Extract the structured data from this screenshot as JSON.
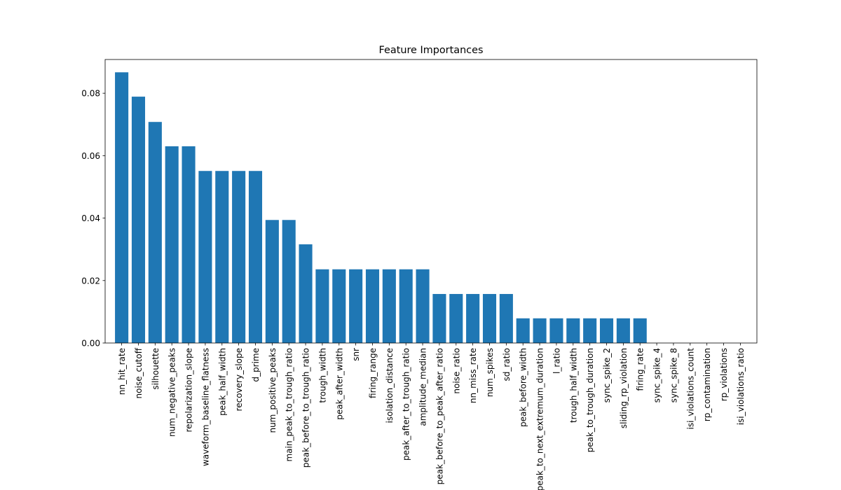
{
  "chart_data": {
    "type": "bar",
    "title": "Feature Importances",
    "categories": [
      "nn_hit_rate",
      "noise_cutoff",
      "silhouette",
      "num_negative_peaks",
      "repolarization_slope",
      "waveform_baseline_flatness",
      "peak_half_width",
      "recovery_slope",
      "d_prime",
      "num_positive_peaks",
      "main_peak_to_trough_ratio",
      "peak_before_to_trough_ratio",
      "trough_width",
      "peak_after_width",
      "snr",
      "firing_range",
      "isolation_distance",
      "peak_after_to_trough_ratio",
      "amplitude_median",
      "peak_before_to_peak_after_ratio",
      "noise_ratio",
      "nn_miss_rate",
      "num_spikes",
      "sd_ratio",
      "peak_before_width",
      "peak_to_next_extremum_duration",
      "l_ratio",
      "trough_half_width",
      "peak_to_trough_duration",
      "sync_spike_2",
      "sliding_rp_violation",
      "firing_rate",
      "sync_spike_4",
      "sync_spike_8",
      "isi_violations_count",
      "rp_contamination",
      "rp_violations",
      "isi_violations_ratio"
    ],
    "values": [
      0.0867,
      0.0789,
      0.0708,
      0.063,
      0.063,
      0.0551,
      0.0551,
      0.0551,
      0.0551,
      0.0394,
      0.0394,
      0.0316,
      0.0236,
      0.0236,
      0.0236,
      0.0236,
      0.0236,
      0.0236,
      0.0236,
      0.0157,
      0.0157,
      0.0157,
      0.0157,
      0.0157,
      0.0079,
      0.0079,
      0.0079,
      0.0079,
      0.0079,
      0.0079,
      0.0079,
      0.0079,
      0,
      0,
      0,
      0,
      0,
      0
    ],
    "color": "#1f77b4",
    "ylim": [
      0,
      0.0908
    ],
    "yticks": [
      {
        "value": 0,
        "label": "0.00"
      },
      {
        "value": 0.02,
        "label": "0.02"
      },
      {
        "value": 0.04,
        "label": "0.04"
      },
      {
        "value": 0.06,
        "label": "0.06"
      },
      {
        "value": 0.08,
        "label": "0.08"
      }
    ],
    "grid": false
  }
}
